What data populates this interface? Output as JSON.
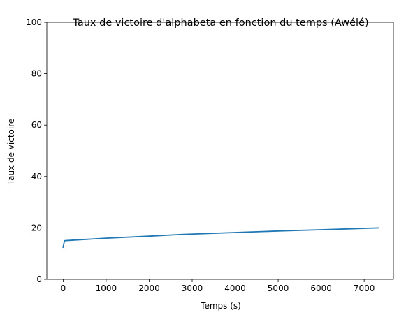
{
  "chart_data": {
    "type": "line",
    "title": "Taux de victoire d'alphabeta en fonction du temps (Awélé)",
    "xlabel": "Temps (s)",
    "ylabel": "Taux de victoire",
    "xlim": [
      -380,
      7680
    ],
    "ylim": [
      0,
      100
    ],
    "xticks": [
      0,
      1000,
      2000,
      3000,
      4000,
      5000,
      6000,
      7000
    ],
    "yticks": [
      0,
      20,
      40,
      60,
      80,
      100
    ],
    "grid": false,
    "series": [
      {
        "color": "#1f77b4",
        "x": [
          0,
          30,
          100,
          500,
          1000,
          2000,
          2800,
          4000,
          5000,
          6000,
          7330
        ],
        "y": [
          12.5,
          15.0,
          15.1,
          15.5,
          16.0,
          16.8,
          17.5,
          18.2,
          18.8,
          19.3,
          20.0
        ]
      }
    ]
  }
}
